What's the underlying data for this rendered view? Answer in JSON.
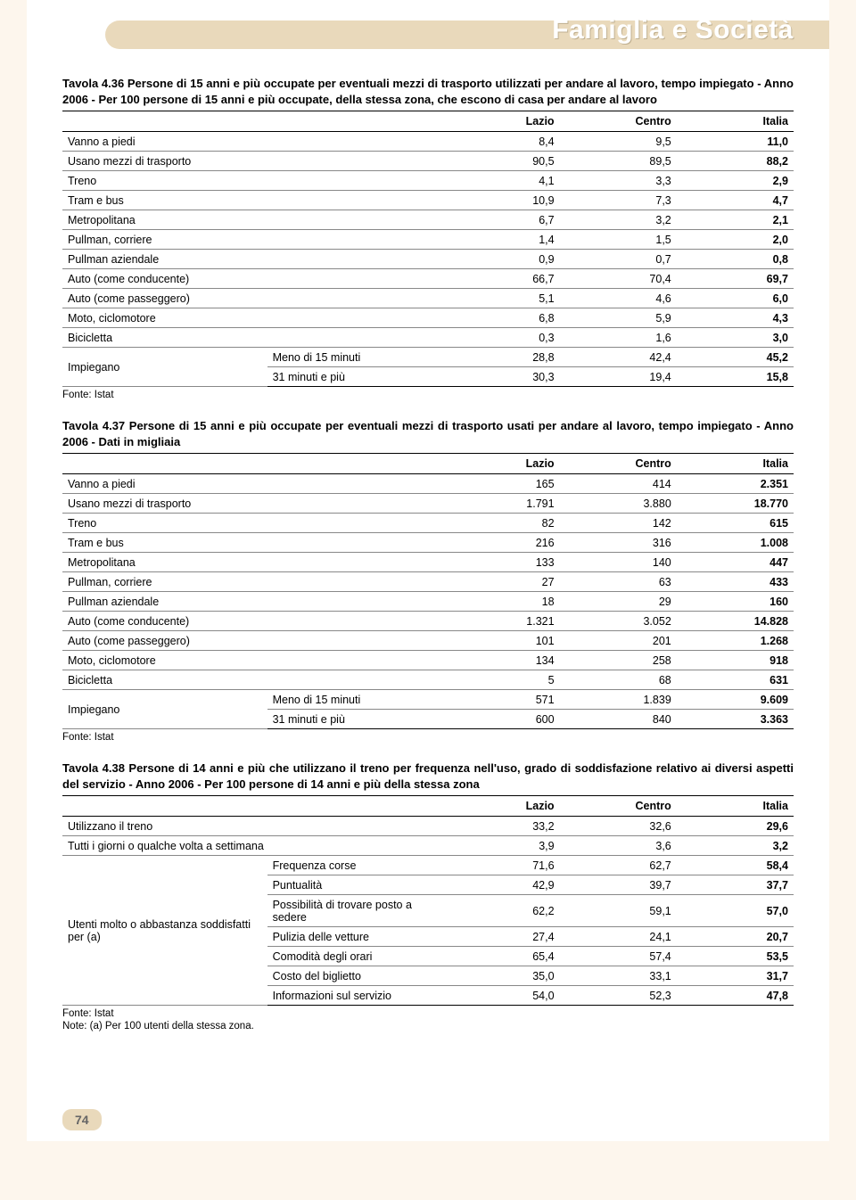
{
  "header": {
    "title": "Famiglia e Società"
  },
  "pageNumber": "74",
  "sourceLabel": "Fonte: Istat",
  "columns": [
    "Lazio",
    "Centro",
    "Italia"
  ],
  "table1": {
    "title": "Tavola 4.36 Persone di 15 anni e più occupate per eventuali mezzi di trasporto utilizzati per andare al lavoro, tempo impiegato - Anno 2006 - Per 100 persone di 15 anni e più occupate, della stessa zona, che escono di casa per andare al lavoro",
    "rows": [
      {
        "label": "Vanno a piedi",
        "v": [
          "8,4",
          "9,5",
          "11,0"
        ]
      },
      {
        "label": "Usano mezzi di trasporto",
        "v": [
          "90,5",
          "89,5",
          "88,2"
        ]
      },
      {
        "label": "Treno",
        "v": [
          "4,1",
          "3,3",
          "2,9"
        ]
      },
      {
        "label": "Tram e bus",
        "v": [
          "10,9",
          "7,3",
          "4,7"
        ]
      },
      {
        "label": "Metropolitana",
        "v": [
          "6,7",
          "3,2",
          "2,1"
        ]
      },
      {
        "label": "Pullman, corriere",
        "v": [
          "1,4",
          "1,5",
          "2,0"
        ]
      },
      {
        "label": "Pullman aziendale",
        "v": [
          "0,9",
          "0,7",
          "0,8"
        ]
      },
      {
        "label": "Auto (come conducente)",
        "v": [
          "66,7",
          "70,4",
          "69,7"
        ]
      },
      {
        "label": "Auto (come passeggero)",
        "v": [
          "5,1",
          "4,6",
          "6,0"
        ]
      },
      {
        "label": "Moto, ciclomotore",
        "v": [
          "6,8",
          "5,9",
          "4,3"
        ]
      },
      {
        "label": "Bicicletta",
        "v": [
          "0,3",
          "1,6",
          "3,0"
        ]
      }
    ],
    "impiegano": {
      "label": "Impiegano",
      "sub": [
        {
          "label": "Meno di 15 minuti",
          "v": [
            "28,8",
            "42,4",
            "45,2"
          ]
        },
        {
          "label": "31 minuti e più",
          "v": [
            "30,3",
            "19,4",
            "15,8"
          ]
        }
      ]
    }
  },
  "table2": {
    "title": "Tavola 4.37 Persone di 15 anni e più occupate per eventuali mezzi di trasporto usati per andare al lavoro, tempo impiegato - Anno 2006 - Dati in migliaia",
    "rows": [
      {
        "label": "Vanno a piedi",
        "v": [
          "165",
          "414",
          "2.351"
        ]
      },
      {
        "label": "Usano mezzi di trasporto",
        "v": [
          "1.791",
          "3.880",
          "18.770"
        ]
      },
      {
        "label": "Treno",
        "v": [
          "82",
          "142",
          "615"
        ]
      },
      {
        "label": "Tram e bus",
        "v": [
          "216",
          "316",
          "1.008"
        ]
      },
      {
        "label": "Metropolitana",
        "v": [
          "133",
          "140",
          "447"
        ]
      },
      {
        "label": "Pullman, corriere",
        "v": [
          "27",
          "63",
          "433"
        ]
      },
      {
        "label": "Pullman aziendale",
        "v": [
          "18",
          "29",
          "160"
        ]
      },
      {
        "label": "Auto (come conducente)",
        "v": [
          "1.321",
          "3.052",
          "14.828"
        ]
      },
      {
        "label": "Auto (come passeggero)",
        "v": [
          "101",
          "201",
          "1.268"
        ]
      },
      {
        "label": "Moto, ciclomotore",
        "v": [
          "134",
          "258",
          "918"
        ]
      },
      {
        "label": "Bicicletta",
        "v": [
          "5",
          "68",
          "631"
        ]
      }
    ],
    "impiegano": {
      "label": "Impiegano",
      "sub": [
        {
          "label": "Meno di 15 minuti",
          "v": [
            "571",
            "1.839",
            "9.609"
          ]
        },
        {
          "label": "31 minuti e più",
          "v": [
            "600",
            "840",
            "3.363"
          ]
        }
      ]
    }
  },
  "table3": {
    "title": "Tavola 4.38 Persone di 14 anni e più che utilizzano il treno per frequenza nell'uso, grado di soddisfazione relativo ai diversi aspetti del servizio - Anno 2006 - Per 100 persone di 14 anni e più della stessa zona",
    "topRows": [
      {
        "label": "Utilizzano il treno",
        "v": [
          "33,2",
          "32,6",
          "29,6"
        ]
      },
      {
        "label": "Tutti i giorni o qualche volta a settimana",
        "v": [
          "3,9",
          "3,6",
          "3,2"
        ]
      }
    ],
    "groupLabel": "Utenti molto o abbastanza soddisfatti per (a)",
    "groupRows": [
      {
        "label": "Frequenza corse",
        "v": [
          "71,6",
          "62,7",
          "58,4"
        ]
      },
      {
        "label": "Puntualità",
        "v": [
          "42,9",
          "39,7",
          "37,7"
        ]
      },
      {
        "label": "Possibilità di trovare posto a sedere",
        "v": [
          "62,2",
          "59,1",
          "57,0"
        ]
      },
      {
        "label": "Pulizia delle vetture",
        "v": [
          "27,4",
          "24,1",
          "20,7"
        ]
      },
      {
        "label": "Comodità degli orari",
        "v": [
          "65,4",
          "57,4",
          "53,5"
        ]
      },
      {
        "label": "Costo del biglietto",
        "v": [
          "35,0",
          "33,1",
          "31,7"
        ]
      },
      {
        "label": "Informazioni sul servizio",
        "v": [
          "54,0",
          "52,3",
          "47,8"
        ]
      }
    ],
    "note": "Note: (a) Per 100 utenti della stessa zona."
  }
}
